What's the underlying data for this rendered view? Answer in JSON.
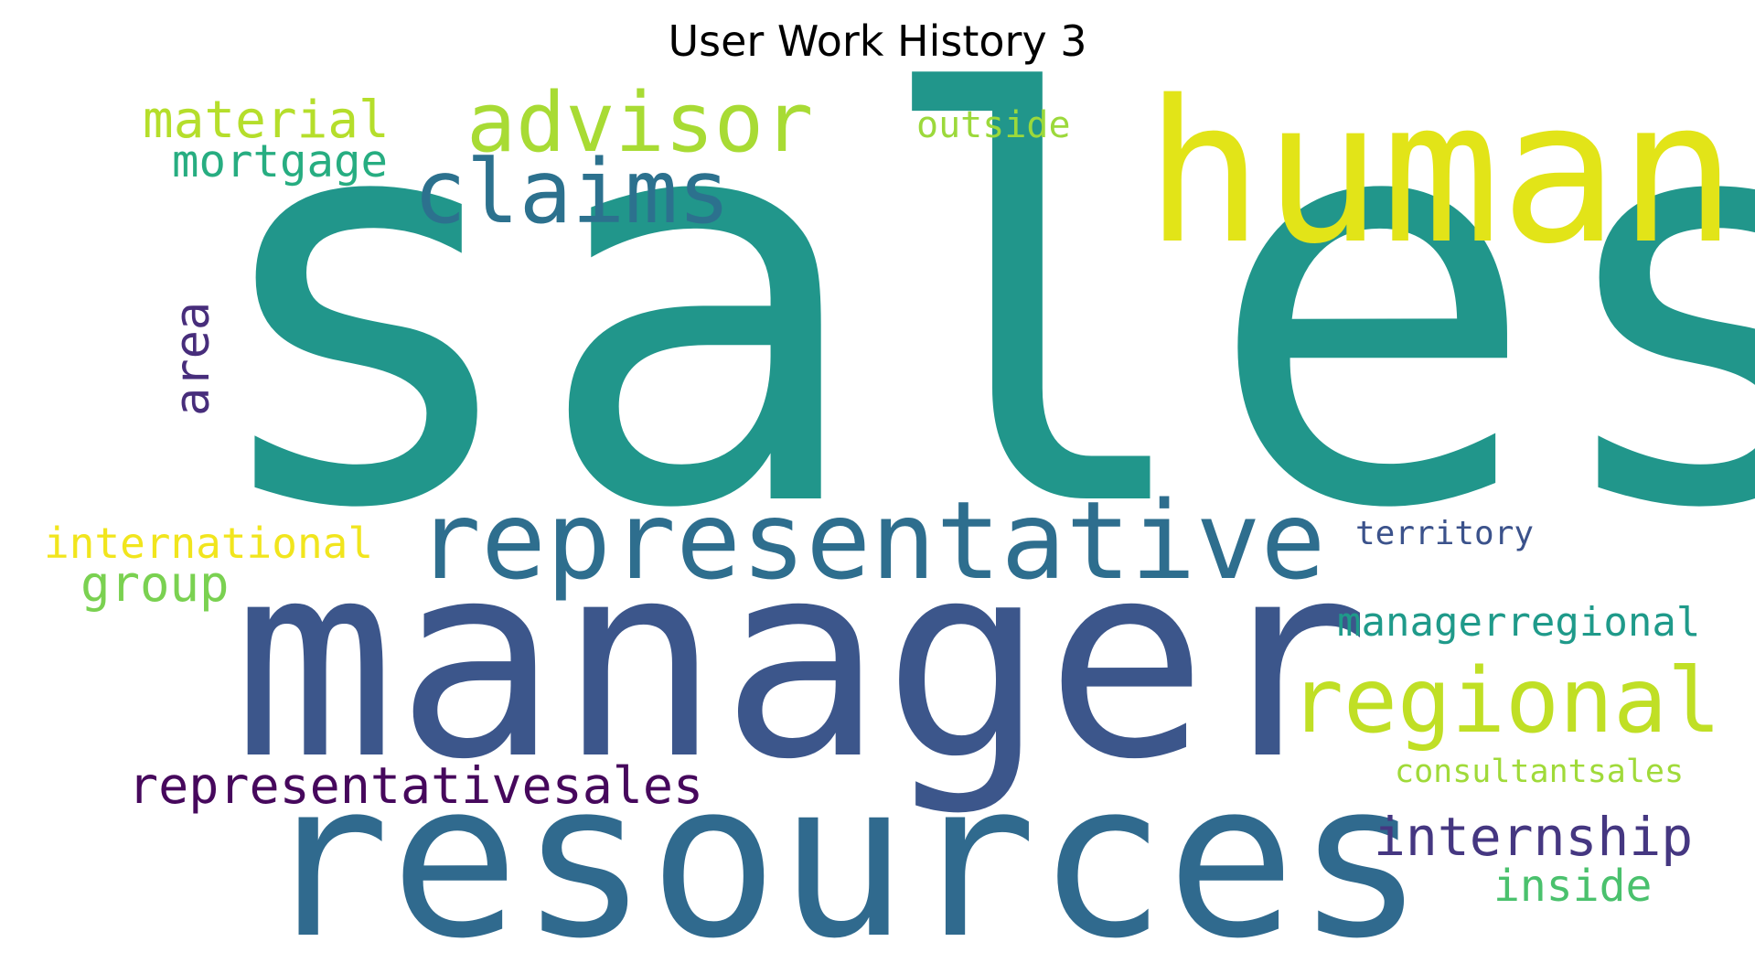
{
  "title": "User Work History 3",
  "words": [
    {
      "text": "sales",
      "color": "#21968b",
      "rotated": false
    },
    {
      "text": "manager",
      "color": "#3c568b",
      "rotated": false
    },
    {
      "text": "resources",
      "color": "#306a8e",
      "rotated": false
    },
    {
      "text": "human",
      "color": "#e2e418",
      "rotated": false
    },
    {
      "text": "representative",
      "color": "#2e6e8e",
      "rotated": false
    },
    {
      "text": "regional",
      "color": "#c0df25",
      "rotated": false
    },
    {
      "text": "claims",
      "color": "#2c718e",
      "rotated": false
    },
    {
      "text": "advisor",
      "color": "#a8db34",
      "rotated": false
    },
    {
      "text": "representativesales",
      "color": "#46085c",
      "rotated": false
    },
    {
      "text": "internship",
      "color": "#453781",
      "rotated": false
    },
    {
      "text": "material",
      "color": "#b5de2b",
      "rotated": false
    },
    {
      "text": "mortgage",
      "color": "#27ad81",
      "rotated": false
    },
    {
      "text": "area",
      "color": "#472d7b",
      "rotated": true
    },
    {
      "text": "international",
      "color": "#f1e51d",
      "rotated": false
    },
    {
      "text": "group",
      "color": "#7ad151",
      "rotated": false
    },
    {
      "text": "managerregional",
      "color": "#1f9a8a",
      "rotated": false
    },
    {
      "text": "territory",
      "color": "#3b528b",
      "rotated": false
    },
    {
      "text": "consultantsales",
      "color": "#a0da39",
      "rotated": false
    },
    {
      "text": "inside",
      "color": "#4ac16d",
      "rotated": false
    },
    {
      "text": "outside",
      "color": "#9cd93b",
      "rotated": false
    }
  ]
}
